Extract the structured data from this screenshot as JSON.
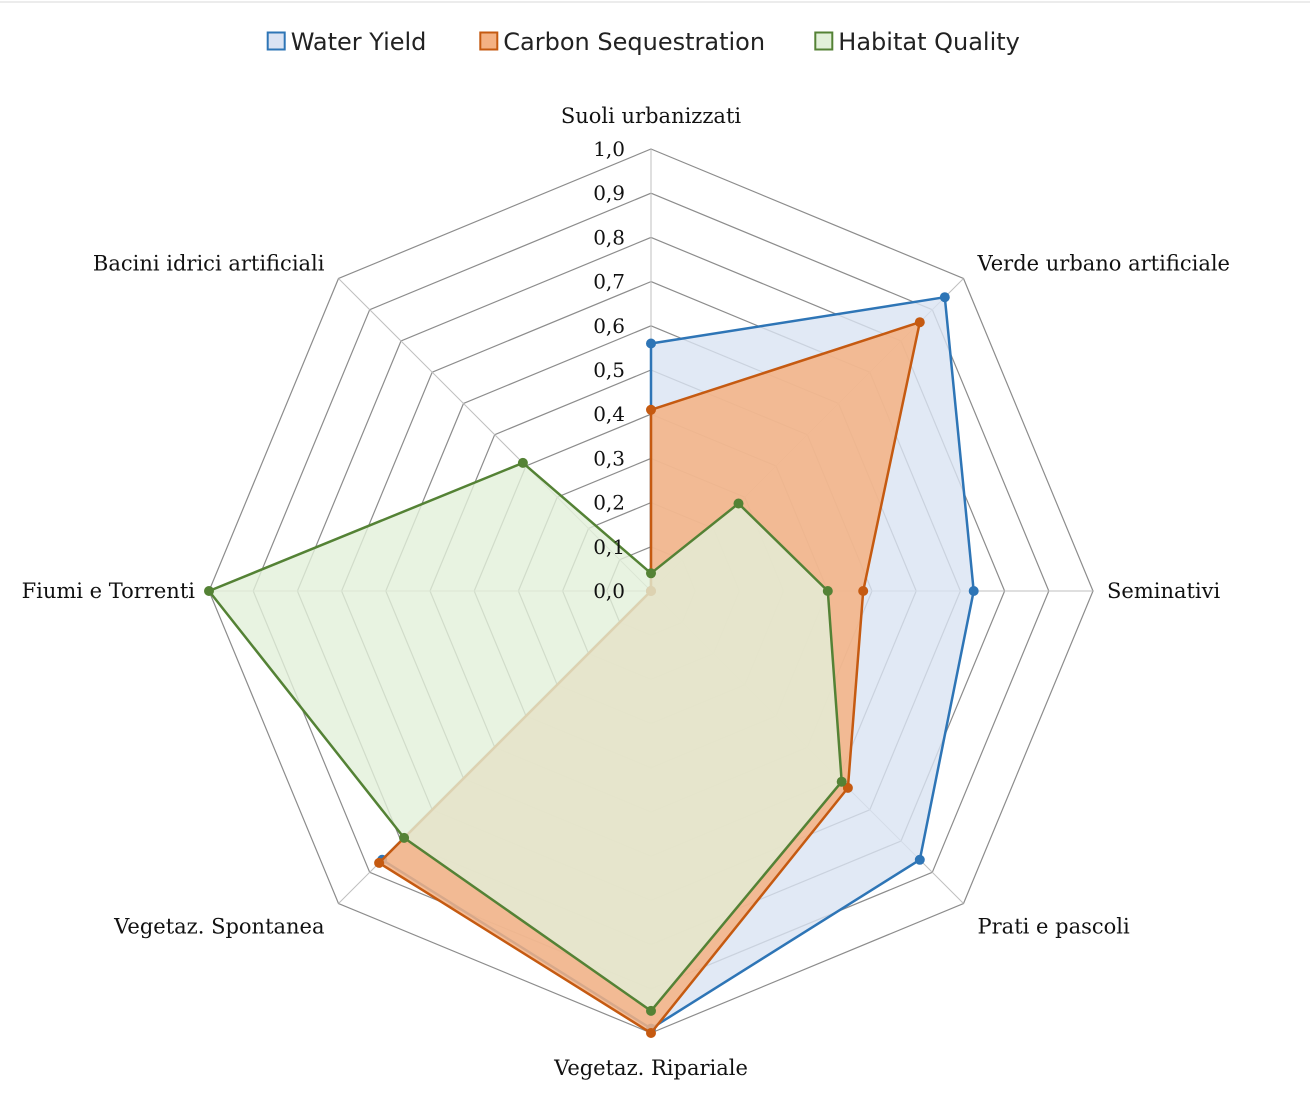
{
  "chart_data": {
    "type": "radar",
    "title": "",
    "categories": [
      "Suoli urbanizzati",
      "Verde urbano artificiale",
      "Seminativi",
      "Prati e pascoli",
      "Vegetaz. Ripariale",
      "Vegetaz. Spontanea",
      "Fiumi e Torrenti",
      "Bacini idrici artificiali"
    ],
    "ticks": [
      "0,0",
      "0,1",
      "0,2",
      "0,3",
      "0,4",
      "0,5",
      "0,6",
      "0,7",
      "0,8",
      "0,9",
      "1,0"
    ],
    "range": [
      0,
      1
    ],
    "grid": true,
    "legend_position": "top",
    "series": [
      {
        "name": "Water Yield",
        "values": [
          0.56,
          0.94,
          0.73,
          0.86,
          0.99,
          0.86,
          0.0,
          0.0
        ],
        "line_color": "#2e75b6",
        "fill_color": "#dae3f3"
      },
      {
        "name": "Carbon Sequestration",
        "values": [
          0.41,
          0.86,
          0.48,
          0.63,
          1.0,
          0.87,
          0.0,
          0.0
        ],
        "line_color": "#c55a11",
        "fill_color": "#f4b183"
      },
      {
        "name": "Habitat Quality",
        "values": [
          0.04,
          0.28,
          0.4,
          0.61,
          0.95,
          0.79,
          1.0,
          0.41
        ],
        "line_color": "#548235",
        "fill_color": "#e2f0d9"
      }
    ]
  }
}
